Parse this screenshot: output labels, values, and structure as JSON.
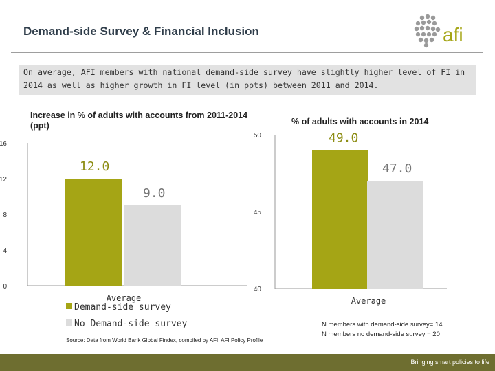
{
  "header": {
    "title": "Demand-side Survey & Financial Inclusion",
    "logo_text": "afi"
  },
  "summary": {
    "text": "On average, AFI members with national demand-side survey have slightly higher level of FI in 2014 as well as higher growth in FI level (in ppts) between 2011 and 2014."
  },
  "colors": {
    "demand_side": "#a5a515",
    "no_demand_side": "#dcdcdc",
    "footer": "#6e6e30"
  },
  "chart_data": [
    {
      "type": "bar",
      "title": "Increase in % of adults with accounts from 2011-2014 (ppt)",
      "categories": [
        "Average"
      ],
      "series": [
        {
          "name": "Demand-side survey",
          "values": [
            12.0
          ]
        },
        {
          "name": "No Demand-side survey",
          "values": [
            9.0
          ]
        }
      ],
      "data_labels": [
        "12.0",
        "9.0"
      ],
      "ylim": [
        0,
        16
      ],
      "yticks": [
        0,
        4,
        8,
        12,
        16
      ]
    },
    {
      "type": "bar",
      "title": "% of adults with accounts in 2014",
      "categories": [
        "Average"
      ],
      "series": [
        {
          "name": "Demand-side survey",
          "values": [
            49.0
          ]
        },
        {
          "name": "No Demand-side survey",
          "values": [
            47.0
          ]
        }
      ],
      "data_labels": [
        "49.0",
        "47.0"
      ],
      "ylim": [
        40,
        50
      ],
      "yticks": [
        40,
        45,
        50
      ]
    }
  ],
  "legend": {
    "items": [
      "Demand-side survey",
      "No Demand-side survey"
    ]
  },
  "notes": {
    "n_demand": "N members with demand-side survey= 14",
    "n_no_demand": "N members no demand-side survey = 20",
    "source": "Source: Data from World Bank Global Findex, compiled by AFI; AFI Policy Profile"
  },
  "footer": {
    "tagline": "Bringing smart policies to life"
  }
}
